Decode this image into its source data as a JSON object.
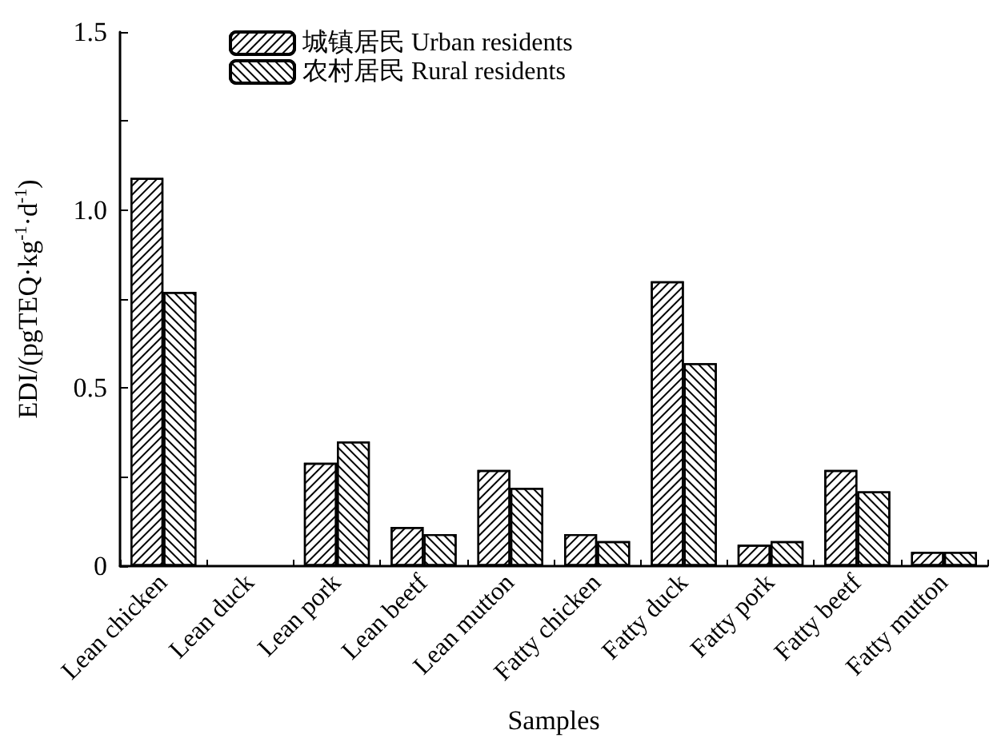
{
  "chart_data": {
    "type": "bar",
    "xlabel": "Samples",
    "ylabel": "EDI/(pgTEQ·kg$^{-1}$·d$^{-1}$)",
    "categories": [
      "Lean chicken",
      "Lean duck",
      "Lean pork",
      "Lean beetf",
      "Lean mutton",
      "Fatty chicken",
      "Fatty duck",
      "Fatty pork",
      "Fatty beetf",
      "Fatty mutton"
    ],
    "series": [
      {
        "name": "城镇居民 Urban residents",
        "color": "#ffffff",
        "values": [
          1.09,
          0,
          0.29,
          0.11,
          0.27,
          0.09,
          0.8,
          0.06,
          0.27,
          0.04
        ]
      },
      {
        "name": "农村居民 Rural residents",
        "color": "#ffffff",
        "values": [
          0.77,
          0,
          0.35,
          0.09,
          0.22,
          0.07,
          0.57,
          0.07,
          0.21,
          0.04
        ]
      }
    ],
    "ylim": [
      0,
      1.5
    ],
    "yticks": [
      0,
      {
        "value": 0.25,
        "label": null
      },
      {
        "value": 0.5,
        "label": "0.5"
      },
      {
        "value": 0.75,
        "label": null
      },
      {
        "value": 1,
        "label": "1.0"
      },
      {
        "value": 1.25,
        "label": null
      },
      {
        "value": 1.5,
        "label": "1.5"
      }
    ],
    "grid": false,
    "legend": "top left"
  }
}
